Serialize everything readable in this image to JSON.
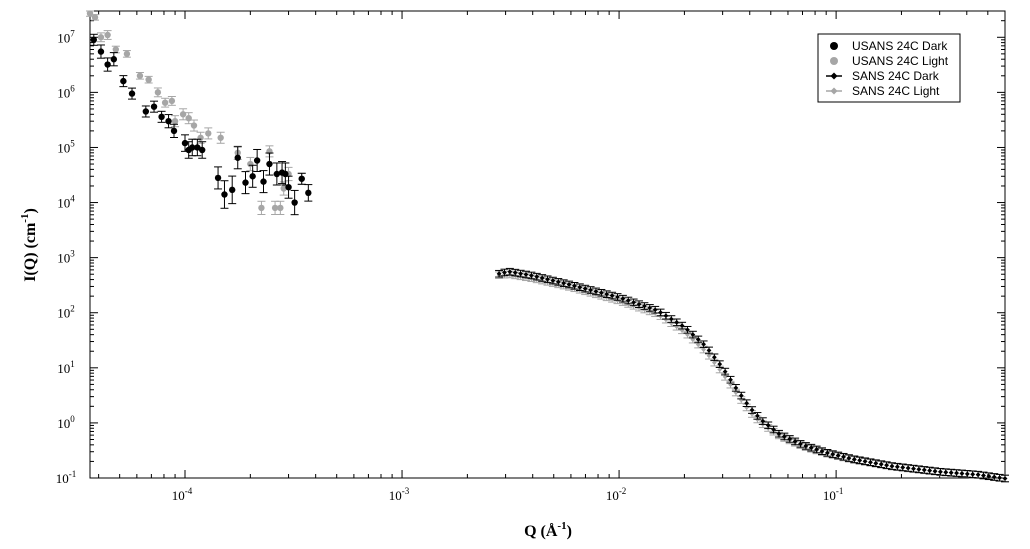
{
  "chart_data": {
    "type": "scatter",
    "title": "",
    "xlabel": {
      "base": "Q (Å",
      "sup": "-1",
      "tail": ")"
    },
    "ylabel": {
      "base": "I(Q) (cm",
      "sup": "-1",
      "tail": ")"
    },
    "xscale": "log",
    "yscale": "log",
    "xlim": [
      3.65e-05,
      0.6
    ],
    "ylim": [
      0.1,
      30000000
    ],
    "grid": false,
    "legend": "top-right",
    "x_tick_labels": [
      {
        "value": 0.0001,
        "base": "10",
        "exp": "-4"
      },
      {
        "value": 0.001,
        "base": "10",
        "exp": "-3"
      },
      {
        "value": 0.01,
        "base": "10",
        "exp": "-2"
      },
      {
        "value": 0.1,
        "base": "10",
        "exp": "-1"
      }
    ],
    "y_tick_labels": [
      {
        "value": 10000000,
        "base": "10",
        "exp": "7"
      },
      {
        "value": 1000000,
        "base": "10",
        "exp": "6"
      },
      {
        "value": 100000,
        "base": "10",
        "exp": "5"
      },
      {
        "value": 10000,
        "base": "10",
        "exp": "4"
      },
      {
        "value": 1000,
        "base": "10",
        "exp": "3"
      },
      {
        "value": 100,
        "base": "10",
        "exp": "2"
      },
      {
        "value": 10,
        "base": "10",
        "exp": "1"
      },
      {
        "value": 1,
        "base": "10",
        "exp": "0"
      },
      {
        "value": 0.1,
        "base": "10",
        "exp": "-1"
      }
    ],
    "series": [
      {
        "name": "USANS 24C Dark",
        "color": "#000000",
        "marker": "circle",
        "points": [
          {
            "x": 3.8e-05,
            "y": 9000000,
            "err": 0.1
          },
          {
            "x": 4.1e-05,
            "y": 5500000,
            "err": 0.12
          },
          {
            "x": 4.4e-05,
            "y": 3200000,
            "err": 0.12
          },
          {
            "x": 4.7e-05,
            "y": 4000000,
            "err": 0.12
          },
          {
            "x": 5.2e-05,
            "y": 1600000,
            "err": 0.1
          },
          {
            "x": 5.7e-05,
            "y": 950000,
            "err": 0.1
          },
          {
            "x": 6.6e-05,
            "y": 450000,
            "err": 0.1
          },
          {
            "x": 7.2e-05,
            "y": 550000,
            "err": 0.1
          },
          {
            "x": 7.8e-05,
            "y": 360000,
            "err": 0.1
          },
          {
            "x": 8.4e-05,
            "y": 300000,
            "err": 0.12
          },
          {
            "x": 8.9e-05,
            "y": 200000,
            "err": 0.12
          },
          {
            "x": 0.0001,
            "y": 120000,
            "err": 0.15
          },
          {
            "x": 0.000104,
            "y": 90000,
            "err": 0.15
          },
          {
            "x": 0.000108,
            "y": 100000,
            "err": 0.15
          },
          {
            "x": 0.000114,
            "y": 100000,
            "err": 0.15
          },
          {
            "x": 0.00012,
            "y": 90000,
            "err": 0.15
          },
          {
            "x": 0.000142,
            "y": 28000,
            "err": 0.2
          },
          {
            "x": 0.000152,
            "y": 14000,
            "err": 0.25
          },
          {
            "x": 0.000165,
            "y": 17000,
            "err": 0.25
          },
          {
            "x": 0.000175,
            "y": 65000,
            "err": 0.2
          },
          {
            "x": 0.00019,
            "y": 23000,
            "err": 0.2
          },
          {
            "x": 0.000205,
            "y": 30000,
            "err": 0.2
          },
          {
            "x": 0.000215,
            "y": 58000,
            "err": 0.2
          },
          {
            "x": 0.00023,
            "y": 24000,
            "err": 0.2
          },
          {
            "x": 0.000245,
            "y": 50000,
            "err": 0.2
          },
          {
            "x": 0.000265,
            "y": 33000,
            "err": 0.2
          },
          {
            "x": 0.00028,
            "y": 35000,
            "err": 0.2
          },
          {
            "x": 0.00029,
            "y": 33000,
            "err": 0.2
          },
          {
            "x": 0.0003,
            "y": 19000,
            "err": 0.2
          },
          {
            "x": 0.00032,
            "y": 10000,
            "err": 0.22
          },
          {
            "x": 0.000345,
            "y": 27000,
            "err": 0.1
          },
          {
            "x": 0.00037,
            "y": 15000,
            "err": 0.15
          }
        ]
      },
      {
        "name": "USANS 24C Light",
        "color": "#a6a6a6",
        "marker": "circle",
        "points": [
          {
            "x": 3.65e-05,
            "y": 27000000,
            "err": 0.05
          },
          {
            "x": 3.85e-05,
            "y": 23000000,
            "err": 0.05
          },
          {
            "x": 4.1e-05,
            "y": 10000000,
            "err": 0.08
          },
          {
            "x": 4.4e-05,
            "y": 11000000,
            "err": 0.08
          },
          {
            "x": 4.8e-05,
            "y": 6000000,
            "err": 0.06
          },
          {
            "x": 5.4e-05,
            "y": 5000000,
            "err": 0.06
          },
          {
            "x": 6.2e-05,
            "y": 2000000,
            "err": 0.06
          },
          {
            "x": 6.8e-05,
            "y": 1700000,
            "err": 0.06
          },
          {
            "x": 7.5e-05,
            "y": 1000000,
            "err": 0.08
          },
          {
            "x": 8.1e-05,
            "y": 650000,
            "err": 0.08
          },
          {
            "x": 8.7e-05,
            "y": 700000,
            "err": 0.08
          },
          {
            "x": 9e-05,
            "y": 300000,
            "err": 0.1
          },
          {
            "x": 9.8e-05,
            "y": 400000,
            "err": 0.1
          },
          {
            "x": 0.000104,
            "y": 340000,
            "err": 0.1
          },
          {
            "x": 0.00011,
            "y": 250000,
            "err": 0.1
          },
          {
            "x": 0.000118,
            "y": 150000,
            "err": 0.1
          },
          {
            "x": 0.000128,
            "y": 180000,
            "err": 0.1
          },
          {
            "x": 0.000146,
            "y": 150000,
            "err": 0.1
          },
          {
            "x": 0.000175,
            "y": 80000,
            "err": 0.12
          },
          {
            "x": 0.0002,
            "y": 50000,
            "err": 0.12
          },
          {
            "x": 0.000225,
            "y": 8000,
            "err": 0.12
          },
          {
            "x": 0.000245,
            "y": 85000,
            "err": 0.1
          },
          {
            "x": 0.00026,
            "y": 8000,
            "err": 0.12
          },
          {
            "x": 0.000275,
            "y": 8000,
            "err": 0.12
          },
          {
            "x": 0.000285,
            "y": 18000,
            "err": 0.12
          },
          {
            "x": 0.0003,
            "y": 33000,
            "err": 0.12
          },
          {
            "x": 0.000345,
            "y": 27000,
            "err": 0.1
          }
        ]
      },
      {
        "name": "SANS 24C Dark",
        "color": "#000000",
        "marker": "diamond",
        "x_range": [
          0.0028,
          0.6
        ],
        "knots": [
          {
            "x": 0.0028,
            "y": 510
          },
          {
            "x": 0.0031,
            "y": 560
          },
          {
            "x": 0.004,
            "y": 470
          },
          {
            "x": 0.006,
            "y": 320
          },
          {
            "x": 0.01,
            "y": 190
          },
          {
            "x": 0.015,
            "y": 110
          },
          {
            "x": 0.02,
            "y": 55
          },
          {
            "x": 0.025,
            "y": 25
          },
          {
            "x": 0.03,
            "y": 10
          },
          {
            "x": 0.035,
            "y": 4
          },
          {
            "x": 0.04,
            "y": 1.9
          },
          {
            "x": 0.045,
            "y": 1.15
          },
          {
            "x": 0.055,
            "y": 0.62
          },
          {
            "x": 0.07,
            "y": 0.4
          },
          {
            "x": 0.09,
            "y": 0.29
          },
          {
            "x": 0.12,
            "y": 0.22
          },
          {
            "x": 0.18,
            "y": 0.165
          },
          {
            "x": 0.3,
            "y": 0.13
          },
          {
            "x": 0.45,
            "y": 0.115
          },
          {
            "x": 0.6,
            "y": 0.098
          }
        ]
      },
      {
        "name": "SANS 24C Light",
        "color": "#a6a6a6",
        "marker": "diamond",
        "x_range": [
          0.0028,
          0.6
        ],
        "knots": [
          {
            "x": 0.0028,
            "y": 480
          },
          {
            "x": 0.0031,
            "y": 500
          },
          {
            "x": 0.004,
            "y": 420
          },
          {
            "x": 0.006,
            "y": 290
          },
          {
            "x": 0.01,
            "y": 165
          },
          {
            "x": 0.015,
            "y": 95
          },
          {
            "x": 0.02,
            "y": 45
          },
          {
            "x": 0.025,
            "y": 20
          },
          {
            "x": 0.03,
            "y": 8
          },
          {
            "x": 0.035,
            "y": 3.3
          },
          {
            "x": 0.04,
            "y": 1.6
          },
          {
            "x": 0.045,
            "y": 1.0
          },
          {
            "x": 0.055,
            "y": 0.58
          },
          {
            "x": 0.07,
            "y": 0.38
          },
          {
            "x": 0.09,
            "y": 0.28
          },
          {
            "x": 0.12,
            "y": 0.215
          },
          {
            "x": 0.18,
            "y": 0.162
          },
          {
            "x": 0.3,
            "y": 0.128
          },
          {
            "x": 0.45,
            "y": 0.114
          },
          {
            "x": 0.6,
            "y": 0.098
          }
        ]
      }
    ]
  }
}
